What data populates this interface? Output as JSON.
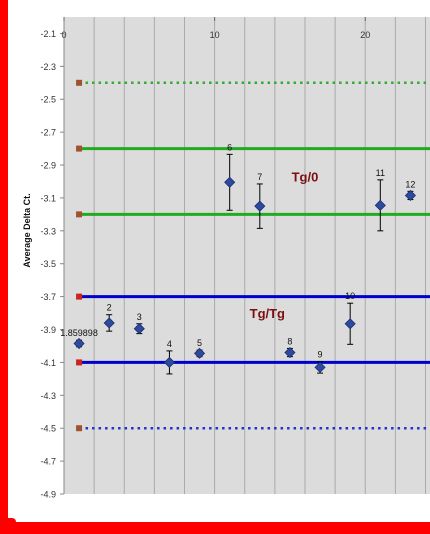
{
  "chart_data": {
    "type": "scatter",
    "title": "",
    "xlabel": "",
    "ylabel": "Average Delta Ct.",
    "xlim": [
      0,
      24.3
    ],
    "ylim": [
      -4.9,
      -2.0
    ],
    "x_ticks": [
      "0",
      "10",
      "20"
    ],
    "x_tick_values": [
      0,
      10,
      20
    ],
    "y_ticks": [
      "-2.1",
      "-2.3",
      "-2.5",
      "-2.7",
      "-2.9",
      "-3.1",
      "-3.3",
      "-3.5",
      "-3.7",
      "-3.9",
      "-4.1",
      "-4.3",
      "-4.5",
      "-4.7",
      "-4.9"
    ],
    "y_tick_values": [
      -2.1,
      -2.3,
      -2.5,
      -2.7,
      -2.9,
      -3.1,
      -3.3,
      -3.5,
      -3.7,
      -3.9,
      -4.1,
      -4.3,
      -4.5,
      -4.7,
      -4.9
    ],
    "grid": "vertical",
    "points": [
      {
        "label": "1.859898",
        "x": 1.0,
        "y": -3.985,
        "err": 0.02
      },
      {
        "label": "2",
        "x": 3.0,
        "y": -3.86,
        "err": 0.05
      },
      {
        "label": "3",
        "x": 5.0,
        "y": -3.895,
        "err": 0.03
      },
      {
        "label": "4",
        "x": 7.0,
        "y": -4.1,
        "err": 0.07
      },
      {
        "label": "5",
        "x": 9.0,
        "y": -4.045,
        "err": 0.02
      },
      {
        "label": "6",
        "x": 11.0,
        "y": -3.005,
        "err": 0.17
      },
      {
        "label": "7",
        "x": 13.0,
        "y": -3.15,
        "err": 0.135
      },
      {
        "label": "8",
        "x": 15.0,
        "y": -4.04,
        "err": 0.025
      },
      {
        "label": "9",
        "x": 17.0,
        "y": -4.13,
        "err": 0.035
      },
      {
        "label": "10",
        "x": 19.0,
        "y": -3.865,
        "err": 0.125
      },
      {
        "label": "11",
        "x": 21.0,
        "y": -3.145,
        "err": 0.155
      },
      {
        "label": "12",
        "x": 23.0,
        "y": -3.085,
        "err": 0.025
      }
    ],
    "reference_lines": [
      {
        "y": -2.4,
        "color": "#33aa33",
        "style": "dotted",
        "marker_color": "#a0522d"
      },
      {
        "y": -2.8,
        "color": "#22aa22",
        "style": "solid",
        "marker_color": "#a0522d"
      },
      {
        "y": -3.2,
        "color": "#22aa22",
        "style": "solid",
        "marker_color": "#a0522d"
      },
      {
        "y": -3.7,
        "color": "#0000cc",
        "style": "solid",
        "marker_color": "#cc2222"
      },
      {
        "y": -4.1,
        "color": "#0000cc",
        "style": "solid",
        "marker_color": "#cc2222"
      },
      {
        "y": -4.5,
        "color": "#2233cc",
        "style": "dotted",
        "marker_color": "#a0522d"
      }
    ],
    "annotations": [
      {
        "text": "Tg/0",
        "x": 16.0,
        "y": -3.0
      },
      {
        "text": "Tg/Tg",
        "x": 13.5,
        "y": -3.83
      }
    ],
    "colors": {
      "plot_bg": "#dcdcdc",
      "grid": "#aaaaaa",
      "point": "#2e4a9e",
      "annotation": "#7a1010",
      "border": "#ff0000"
    }
  }
}
